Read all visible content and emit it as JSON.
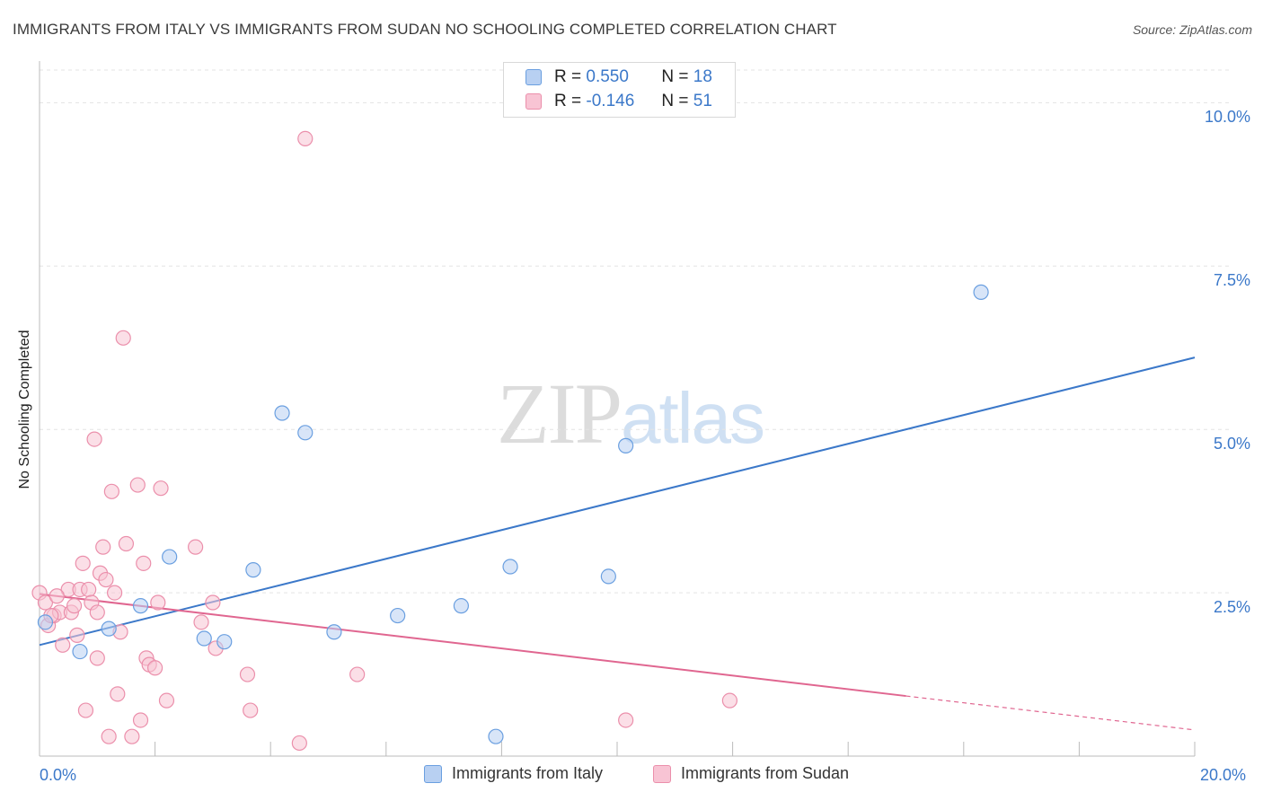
{
  "title": "IMMIGRANTS FROM ITALY VS IMMIGRANTS FROM SUDAN NO SCHOOLING COMPLETED CORRELATION CHART",
  "source": "Source: ZipAtlas.com",
  "watermark": {
    "zip": "ZIP",
    "atlas": "atlas"
  },
  "colors": {
    "italy_fill": "#b8d0f2",
    "italy_stroke": "#6a9fe0",
    "italy_line": "#3b78c9",
    "sudan_fill": "#f8c4d4",
    "sudan_stroke": "#eb8fab",
    "sudan_line": "#e06690",
    "grid": "#e3e3e3",
    "tick_text": "#3b78c9"
  },
  "legend_top": {
    "rows": [
      {
        "r_label": "R =",
        "r_value": "0.550",
        "n_label": "N =",
        "n_value": "18"
      },
      {
        "r_label": "R =",
        "r_value": "-0.146",
        "n_label": "N =",
        "n_value": "51"
      }
    ]
  },
  "legend_bottom": [
    "Immigrants from Italy",
    "Immigrants from Sudan"
  ],
  "chart_data": {
    "type": "scatter",
    "title": "IMMIGRANTS FROM ITALY VS IMMIGRANTS FROM SUDAN NO SCHOOLING COMPLETED CORRELATION CHART",
    "xlabel": "",
    "ylabel": "No Schooling Completed",
    "xlim": [
      0,
      20
    ],
    "ylim": [
      0,
      10.5
    ],
    "x_tick_labels": [
      "0.0%",
      "20.0%"
    ],
    "y_ticks": [
      2.5,
      5.0,
      7.5,
      10.0
    ],
    "y_tick_labels": [
      "2.5%",
      "5.0%",
      "7.5%",
      "10.0%"
    ],
    "grid": true,
    "legend": "bottom",
    "series": [
      {
        "name": "Immigrants from Italy",
        "points": [
          [
            0.1,
            2.05
          ],
          [
            0.7,
            1.6
          ],
          [
            1.2,
            1.95
          ],
          [
            1.75,
            2.3
          ],
          [
            2.25,
            3.05
          ],
          [
            2.85,
            1.8
          ],
          [
            3.2,
            1.75
          ],
          [
            3.7,
            2.85
          ],
          [
            4.2,
            5.25
          ],
          [
            4.6,
            4.95
          ],
          [
            5.1,
            1.9
          ],
          [
            6.2,
            2.15
          ],
          [
            7.3,
            2.3
          ],
          [
            7.9,
            0.3
          ],
          [
            8.15,
            2.9
          ],
          [
            9.85,
            2.75
          ],
          [
            10.15,
            4.75
          ],
          [
            16.3,
            7.1
          ]
        ],
        "trend": {
          "x": [
            0,
            20
          ],
          "y": [
            1.7,
            6.1
          ]
        }
      },
      {
        "name": "Immigrants from Sudan",
        "points": [
          [
            0.0,
            2.5
          ],
          [
            0.1,
            2.35
          ],
          [
            0.15,
            2.0
          ],
          [
            0.25,
            2.15
          ],
          [
            0.35,
            2.2
          ],
          [
            0.4,
            1.7
          ],
          [
            0.5,
            2.55
          ],
          [
            0.55,
            2.2
          ],
          [
            0.6,
            2.3
          ],
          [
            0.65,
            1.85
          ],
          [
            0.7,
            2.55
          ],
          [
            0.75,
            2.95
          ],
          [
            0.8,
            0.7
          ],
          [
            0.85,
            2.55
          ],
          [
            0.9,
            2.35
          ],
          [
            0.95,
            4.85
          ],
          [
            1.0,
            1.5
          ],
          [
            1.05,
            2.8
          ],
          [
            1.1,
            3.2
          ],
          [
            1.15,
            2.7
          ],
          [
            1.2,
            0.3
          ],
          [
            1.25,
            4.05
          ],
          [
            1.3,
            2.5
          ],
          [
            1.35,
            0.95
          ],
          [
            1.4,
            1.9
          ],
          [
            1.45,
            6.4
          ],
          [
            1.5,
            3.25
          ],
          [
            1.6,
            0.3
          ],
          [
            1.7,
            4.15
          ],
          [
            1.75,
            0.55
          ],
          [
            1.8,
            2.95
          ],
          [
            1.85,
            1.5
          ],
          [
            1.9,
            1.4
          ],
          [
            2.0,
            1.35
          ],
          [
            2.05,
            2.35
          ],
          [
            2.1,
            4.1
          ],
          [
            2.2,
            0.85
          ],
          [
            2.7,
            3.2
          ],
          [
            2.8,
            2.05
          ],
          [
            3.0,
            2.35
          ],
          [
            3.05,
            1.65
          ],
          [
            3.6,
            1.25
          ],
          [
            3.65,
            0.7
          ],
          [
            4.5,
            0.2
          ],
          [
            4.6,
            9.45
          ],
          [
            5.5,
            1.25
          ],
          [
            10.15,
            0.55
          ],
          [
            11.95,
            0.85
          ],
          [
            0.2,
            2.15
          ],
          [
            0.3,
            2.45
          ],
          [
            1.0,
            2.2
          ]
        ],
        "trend": {
          "x": [
            0,
            15
          ],
          "y": [
            2.48,
            0.92
          ]
        },
        "trend_dashed": {
          "x": [
            15,
            20
          ],
          "y": [
            0.92,
            0.4
          ]
        }
      }
    ]
  }
}
